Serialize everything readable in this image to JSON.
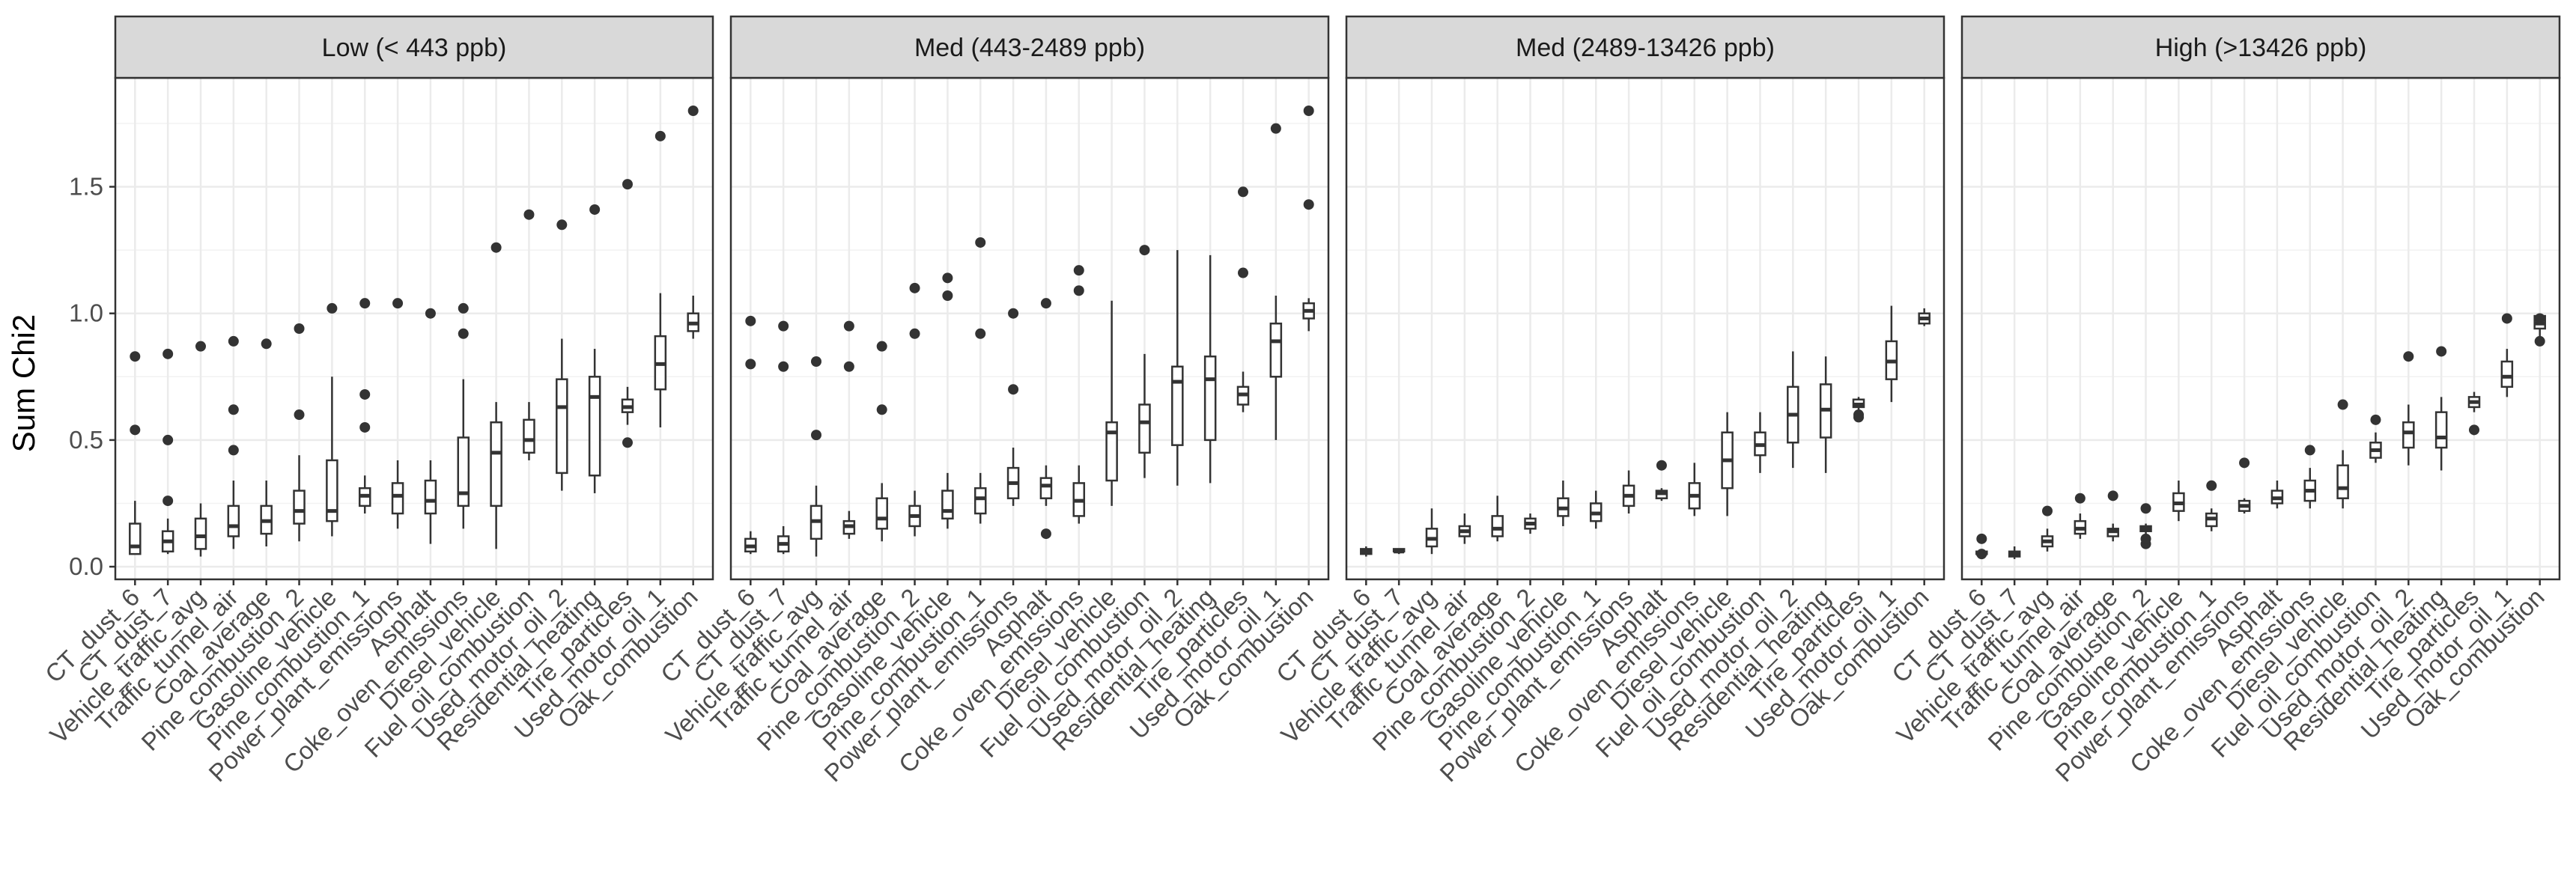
{
  "chart_data": {
    "type": "boxplot",
    "ylabel": "Sum Chi2",
    "ylim": [
      -0.05,
      1.93
    ],
    "yticks": [
      "0.0",
      "0.5",
      "1.0",
      "1.5"
    ],
    "ytick_values": [
      0,
      0.5,
      1.0,
      1.5
    ],
    "grid": true,
    "categories": [
      "CT_dust_6",
      "CT_dust_7",
      "Vehicle_traffic_avg",
      "Traffic_tunnel_air",
      "Coal_average",
      "Pine_combustion_2",
      "Gasoline_vehicle",
      "Pine_combustion_1",
      "Power_plant_emissions",
      "Asphalt",
      "Coke_oven_emissions",
      "Diesel_vehicle",
      "Fuel_oil_combustion",
      "Used_motor_oil_2",
      "Residential_heating",
      "Tire_particles",
      "Used_motor_oil_1",
      "Oak_combustion"
    ],
    "panels": [
      {
        "title": "Low (< 443 ppb)",
        "boxes": [
          {
            "min": 0.05,
            "q1": 0.05,
            "median": 0.08,
            "q3": 0.17,
            "max": 0.26,
            "outliers": [
              0.54,
              0.83
            ]
          },
          {
            "min": 0.05,
            "q1": 0.06,
            "median": 0.1,
            "q3": 0.14,
            "max": 0.19,
            "outliers": [
              0.26,
              0.5,
              0.84
            ]
          },
          {
            "min": 0.04,
            "q1": 0.07,
            "median": 0.12,
            "q3": 0.19,
            "max": 0.25,
            "outliers": [
              0.87
            ]
          },
          {
            "min": 0.07,
            "q1": 0.12,
            "median": 0.16,
            "q3": 0.24,
            "max": 0.34,
            "outliers": [
              0.46,
              0.62,
              0.89
            ]
          },
          {
            "min": 0.08,
            "q1": 0.13,
            "median": 0.18,
            "q3": 0.24,
            "max": 0.34,
            "outliers": [
              0.88
            ]
          },
          {
            "min": 0.1,
            "q1": 0.17,
            "median": 0.22,
            "q3": 0.3,
            "max": 0.44,
            "outliers": [
              0.6,
              0.94
            ]
          },
          {
            "min": 0.12,
            "q1": 0.18,
            "median": 0.22,
            "q3": 0.42,
            "max": 0.75,
            "outliers": [
              1.02
            ]
          },
          {
            "min": 0.21,
            "q1": 0.24,
            "median": 0.28,
            "q3": 0.31,
            "max": 0.36,
            "outliers": [
              0.55,
              0.68,
              1.04
            ]
          },
          {
            "min": 0.15,
            "q1": 0.21,
            "median": 0.28,
            "q3": 0.33,
            "max": 0.42,
            "outliers": [
              1.04
            ]
          },
          {
            "min": 0.09,
            "q1": 0.21,
            "median": 0.26,
            "q3": 0.34,
            "max": 0.42,
            "outliers": [
              1.0
            ]
          },
          {
            "min": 0.15,
            "q1": 0.24,
            "median": 0.29,
            "q3": 0.51,
            "max": 0.74,
            "outliers": [
              0.92,
              1.02
            ]
          },
          {
            "min": 0.07,
            "q1": 0.24,
            "median": 0.45,
            "q3": 0.57,
            "max": 0.65,
            "outliers": [
              1.26
            ]
          },
          {
            "min": 0.42,
            "q1": 0.45,
            "median": 0.5,
            "q3": 0.58,
            "max": 0.65,
            "outliers": [
              1.39
            ]
          },
          {
            "min": 0.3,
            "q1": 0.37,
            "median": 0.63,
            "q3": 0.74,
            "max": 0.9,
            "outliers": [
              1.35
            ]
          },
          {
            "min": 0.29,
            "q1": 0.36,
            "median": 0.67,
            "q3": 0.75,
            "max": 0.86,
            "outliers": [
              1.41
            ]
          },
          {
            "min": 0.56,
            "q1": 0.61,
            "median": 0.63,
            "q3": 0.66,
            "max": 0.71,
            "outliers": [
              0.49,
              1.51
            ]
          },
          {
            "min": 0.55,
            "q1": 0.7,
            "median": 0.8,
            "q3": 0.91,
            "max": 1.08,
            "outliers": [
              1.7
            ]
          },
          {
            "min": 0.9,
            "q1": 0.93,
            "median": 0.96,
            "q3": 1.0,
            "max": 1.07,
            "outliers": [
              1.8
            ]
          }
        ]
      },
      {
        "title": "Med (443-2489 ppb)",
        "boxes": [
          {
            "min": 0.05,
            "q1": 0.06,
            "median": 0.08,
            "q3": 0.11,
            "max": 0.14,
            "outliers": [
              0.8,
              0.97
            ]
          },
          {
            "min": 0.05,
            "q1": 0.06,
            "median": 0.09,
            "q3": 0.12,
            "max": 0.16,
            "outliers": [
              0.79,
              0.95
            ]
          },
          {
            "min": 0.04,
            "q1": 0.11,
            "median": 0.18,
            "q3": 0.24,
            "max": 0.32,
            "outliers": [
              0.52,
              0.81
            ]
          },
          {
            "min": 0.11,
            "q1": 0.13,
            "median": 0.16,
            "q3": 0.18,
            "max": 0.22,
            "outliers": [
              0.79,
              0.95
            ]
          },
          {
            "min": 0.1,
            "q1": 0.15,
            "median": 0.19,
            "q3": 0.27,
            "max": 0.33,
            "outliers": [
              0.62,
              0.87
            ]
          },
          {
            "min": 0.12,
            "q1": 0.16,
            "median": 0.2,
            "q3": 0.24,
            "max": 0.3,
            "outliers": [
              0.92,
              1.1
            ]
          },
          {
            "min": 0.15,
            "q1": 0.19,
            "median": 0.22,
            "q3": 0.3,
            "max": 0.37,
            "outliers": [
              1.07,
              1.14
            ]
          },
          {
            "min": 0.17,
            "q1": 0.21,
            "median": 0.27,
            "q3": 0.31,
            "max": 0.37,
            "outliers": [
              0.92,
              1.28
            ]
          },
          {
            "min": 0.24,
            "q1": 0.27,
            "median": 0.33,
            "q3": 0.39,
            "max": 0.47,
            "outliers": [
              0.7,
              1.0
            ]
          },
          {
            "min": 0.24,
            "q1": 0.27,
            "median": 0.32,
            "q3": 0.35,
            "max": 0.4,
            "outliers": [
              0.13,
              1.04
            ]
          },
          {
            "min": 0.17,
            "q1": 0.2,
            "median": 0.26,
            "q3": 0.33,
            "max": 0.4,
            "outliers": [
              1.09,
              1.17
            ]
          },
          {
            "min": 0.24,
            "q1": 0.34,
            "median": 0.53,
            "q3": 0.57,
            "max": 1.05,
            "outliers": []
          },
          {
            "min": 0.35,
            "q1": 0.45,
            "median": 0.57,
            "q3": 0.64,
            "max": 0.84,
            "outliers": [
              1.25
            ]
          },
          {
            "min": 0.32,
            "q1": 0.48,
            "median": 0.73,
            "q3": 0.79,
            "max": 1.25,
            "outliers": []
          },
          {
            "min": 0.33,
            "q1": 0.5,
            "median": 0.74,
            "q3": 0.83,
            "max": 1.23,
            "outliers": []
          },
          {
            "min": 0.61,
            "q1": 0.64,
            "median": 0.68,
            "q3": 0.71,
            "max": 0.77,
            "outliers": [
              1.16,
              1.48
            ]
          },
          {
            "min": 0.5,
            "q1": 0.75,
            "median": 0.89,
            "q3": 0.96,
            "max": 1.07,
            "outliers": [
              1.73
            ]
          },
          {
            "min": 0.93,
            "q1": 0.98,
            "median": 1.01,
            "q3": 1.04,
            "max": 1.06,
            "outliers": [
              1.43,
              1.8
            ]
          }
        ]
      },
      {
        "title": "Med (2489-13426 ppb)",
        "boxes": [
          {
            "min": 0.04,
            "q1": 0.05,
            "median": 0.06,
            "q3": 0.07,
            "max": 0.08,
            "outliers": []
          },
          {
            "min": 0.05,
            "q1": 0.06,
            "median": 0.06,
            "q3": 0.07,
            "max": 0.07,
            "outliers": []
          },
          {
            "min": 0.05,
            "q1": 0.08,
            "median": 0.11,
            "q3": 0.15,
            "max": 0.23,
            "outliers": []
          },
          {
            "min": 0.09,
            "q1": 0.12,
            "median": 0.14,
            "q3": 0.16,
            "max": 0.21,
            "outliers": []
          },
          {
            "min": 0.1,
            "q1": 0.12,
            "median": 0.15,
            "q3": 0.2,
            "max": 0.28,
            "outliers": []
          },
          {
            "min": 0.13,
            "q1": 0.15,
            "median": 0.17,
            "q3": 0.19,
            "max": 0.21,
            "outliers": []
          },
          {
            "min": 0.16,
            "q1": 0.2,
            "median": 0.23,
            "q3": 0.27,
            "max": 0.34,
            "outliers": []
          },
          {
            "min": 0.15,
            "q1": 0.18,
            "median": 0.21,
            "q3": 0.25,
            "max": 0.3,
            "outliers": []
          },
          {
            "min": 0.21,
            "q1": 0.24,
            "median": 0.28,
            "q3": 0.32,
            "max": 0.38,
            "outliers": []
          },
          {
            "min": 0.26,
            "q1": 0.27,
            "median": 0.29,
            "q3": 0.3,
            "max": 0.31,
            "outliers": [
              0.4
            ]
          },
          {
            "min": 0.2,
            "q1": 0.23,
            "median": 0.28,
            "q3": 0.33,
            "max": 0.41,
            "outliers": []
          },
          {
            "min": 0.2,
            "q1": 0.31,
            "median": 0.42,
            "q3": 0.53,
            "max": 0.61,
            "outliers": []
          },
          {
            "min": 0.37,
            "q1": 0.44,
            "median": 0.48,
            "q3": 0.53,
            "max": 0.61,
            "outliers": []
          },
          {
            "min": 0.39,
            "q1": 0.49,
            "median": 0.6,
            "q3": 0.71,
            "max": 0.85,
            "outliers": []
          },
          {
            "min": 0.37,
            "q1": 0.51,
            "median": 0.62,
            "q3": 0.72,
            "max": 0.83,
            "outliers": []
          },
          {
            "min": 0.62,
            "q1": 0.63,
            "median": 0.64,
            "q3": 0.66,
            "max": 0.67,
            "outliers": [
              0.59,
              0.6
            ]
          },
          {
            "min": 0.65,
            "q1": 0.74,
            "median": 0.81,
            "q3": 0.89,
            "max": 1.03,
            "outliers": []
          },
          {
            "min": 0.95,
            "q1": 0.96,
            "median": 0.98,
            "q3": 1.0,
            "max": 1.02,
            "outliers": []
          }
        ]
      },
      {
        "title": "High (>13426 ppb)",
        "boxes": [
          {
            "min": 0.05,
            "q1": 0.05,
            "median": 0.05,
            "q3": 0.06,
            "max": 0.06,
            "outliers": [
              0.11,
              0.05
            ]
          },
          {
            "min": 0.03,
            "q1": 0.04,
            "median": 0.05,
            "q3": 0.06,
            "max": 0.08,
            "outliers": []
          },
          {
            "min": 0.06,
            "q1": 0.08,
            "median": 0.1,
            "q3": 0.12,
            "max": 0.15,
            "outliers": [
              0.22
            ]
          },
          {
            "min": 0.11,
            "q1": 0.13,
            "median": 0.15,
            "q3": 0.18,
            "max": 0.21,
            "outliers": [
              0.27
            ]
          },
          {
            "min": 0.1,
            "q1": 0.12,
            "median": 0.14,
            "q3": 0.15,
            "max": 0.17,
            "outliers": [
              0.28
            ]
          },
          {
            "min": 0.13,
            "q1": 0.14,
            "median": 0.15,
            "q3": 0.16,
            "max": 0.17,
            "outliers": [
              0.09,
              0.11,
              0.23
            ]
          },
          {
            "min": 0.18,
            "q1": 0.22,
            "median": 0.25,
            "q3": 0.29,
            "max": 0.34,
            "outliers": []
          },
          {
            "min": 0.14,
            "q1": 0.16,
            "median": 0.19,
            "q3": 0.21,
            "max": 0.23,
            "outliers": [
              0.32
            ]
          },
          {
            "min": 0.21,
            "q1": 0.22,
            "median": 0.24,
            "q3": 0.26,
            "max": 0.27,
            "outliers": [
              0.41
            ]
          },
          {
            "min": 0.23,
            "q1": 0.25,
            "median": 0.27,
            "q3": 0.3,
            "max": 0.34,
            "outliers": []
          },
          {
            "min": 0.23,
            "q1": 0.26,
            "median": 0.3,
            "q3": 0.34,
            "max": 0.39,
            "outliers": [
              0.46
            ]
          },
          {
            "min": 0.23,
            "q1": 0.27,
            "median": 0.31,
            "q3": 0.4,
            "max": 0.46,
            "outliers": [
              0.64
            ]
          },
          {
            "min": 0.41,
            "q1": 0.43,
            "median": 0.46,
            "q3": 0.49,
            "max": 0.53,
            "outliers": [
              0.58
            ]
          },
          {
            "min": 0.4,
            "q1": 0.47,
            "median": 0.53,
            "q3": 0.57,
            "max": 0.64,
            "outliers": [
              0.83
            ]
          },
          {
            "min": 0.38,
            "q1": 0.47,
            "median": 0.51,
            "q3": 0.61,
            "max": 0.67,
            "outliers": [
              0.85
            ]
          },
          {
            "min": 0.61,
            "q1": 0.63,
            "median": 0.65,
            "q3": 0.67,
            "max": 0.69,
            "outliers": [
              0.54
            ]
          },
          {
            "min": 0.67,
            "q1": 0.71,
            "median": 0.75,
            "q3": 0.81,
            "max": 0.86,
            "outliers": [
              0.98
            ]
          },
          {
            "min": 0.91,
            "q1": 0.94,
            "median": 0.96,
            "q3": 0.99,
            "max": 1.0,
            "outliers": [
              0.89,
              0.98
            ]
          }
        ]
      }
    ]
  }
}
